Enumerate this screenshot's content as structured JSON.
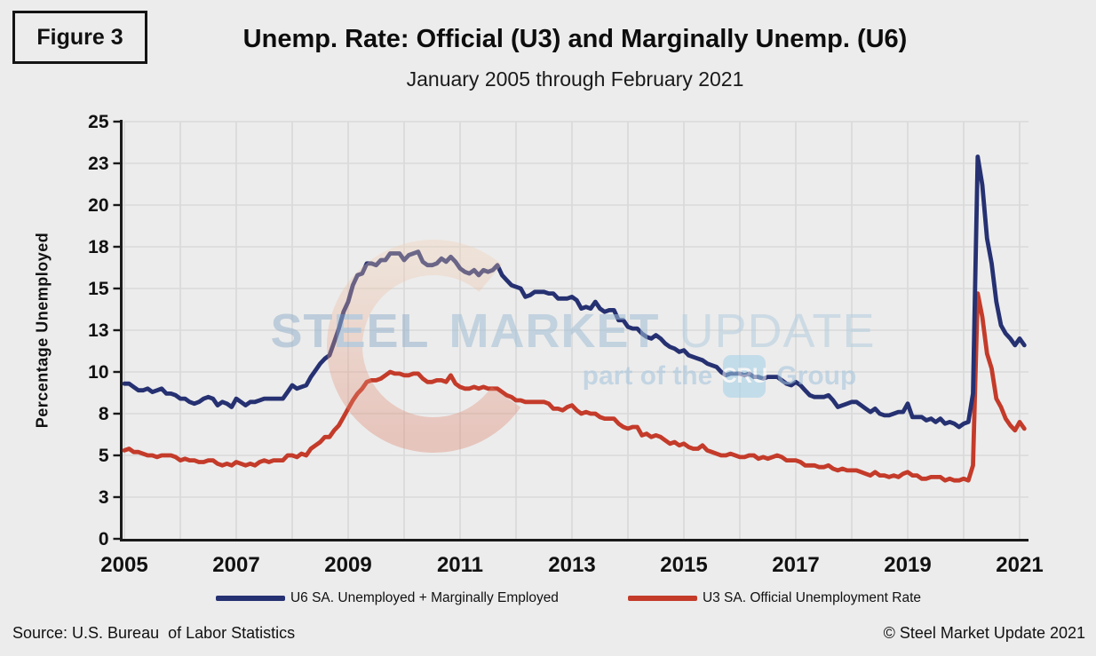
{
  "figure_label": "Figure 3",
  "title": "Unemp. Rate: Official (U3) and Marginally Unemp. (U6)",
  "subtitle": "January 2005 through February 2021",
  "watermark": {
    "word1": "STEEL",
    "word2": "MARKET",
    "word3": "UPDATE",
    "tagline_prefix": "part of the",
    "tagline_box": "CRU",
    "tagline_suffix": "Group"
  },
  "footer": {
    "source": "Source: U.S. Bureau  of Labor Statistics",
    "copyright": "© Steel Market Update 2021"
  },
  "colors": {
    "background": "#ececec",
    "gridline": "#d9d9d9",
    "axis": "#1a1a1a",
    "text": "#111111",
    "u6_line": "#263172",
    "u3_line": "#c43b2a",
    "watermark_blue": "#a7c4db",
    "cru_box": "#a3d0e8",
    "swoosh_top": "#f2d0b4",
    "swoosh_bottom": "#dc7a62"
  },
  "chart_data": {
    "type": "line",
    "title": "Unemp. Rate: Official (U3) and Marginally Unemp. (U6)",
    "subtitle": "January 2005 through February 2021",
    "xlabel": "",
    "ylabel": "Percentage Unemployed",
    "x_unit": "month",
    "x_start": "2005-01",
    "x_end": "2021-02",
    "ylim": [
      0,
      25
    ],
    "grid": true,
    "legend_position": "bottom",
    "y_ticks": [
      {
        "v": 0,
        "label": "0"
      },
      {
        "v": 2.5,
        "label": "3"
      },
      {
        "v": 5,
        "label": "5"
      },
      {
        "v": 7.5,
        "label": "8"
      },
      {
        "v": 10,
        "label": "10"
      },
      {
        "v": 12.5,
        "label": "13"
      },
      {
        "v": 15,
        "label": "15"
      },
      {
        "v": 17.5,
        "label": "18"
      },
      {
        "v": 20,
        "label": "20"
      },
      {
        "v": 22.5,
        "label": "23"
      },
      {
        "v": 25,
        "label": "25"
      }
    ],
    "x_ticks": [
      {
        "m": 0,
        "label": "2005"
      },
      {
        "m": 24,
        "label": "2007"
      },
      {
        "m": 48,
        "label": "2009"
      },
      {
        "m": 72,
        "label": "2011"
      },
      {
        "m": 96,
        "label": "2013"
      },
      {
        "m": 120,
        "label": "2015"
      },
      {
        "m": 144,
        "label": "2017"
      },
      {
        "m": 168,
        "label": "2019"
      },
      {
        "m": 192,
        "label": "2021"
      }
    ],
    "series": [
      {
        "name": "U6 SA. Unemployed + Marginally Employed",
        "color": "#263172",
        "values": [
          9.3,
          9.3,
          9.1,
          8.9,
          8.9,
          9.0,
          8.8,
          8.9,
          9.0,
          8.7,
          8.7,
          8.6,
          8.4,
          8.4,
          8.2,
          8.1,
          8.2,
          8.4,
          8.5,
          8.4,
          8.0,
          8.2,
          8.1,
          7.9,
          8.4,
          8.2,
          8.0,
          8.2,
          8.2,
          8.3,
          8.4,
          8.4,
          8.4,
          8.4,
          8.4,
          8.8,
          9.2,
          9.0,
          9.1,
          9.2,
          9.7,
          10.1,
          10.5,
          10.8,
          11.0,
          11.8,
          12.6,
          13.6,
          14.2,
          15.2,
          15.8,
          15.9,
          16.5,
          16.5,
          16.4,
          16.7,
          16.7,
          17.1,
          17.1,
          17.1,
          16.7,
          17.0,
          17.1,
          17.2,
          16.6,
          16.4,
          16.4,
          16.5,
          16.8,
          16.6,
          16.9,
          16.6,
          16.2,
          16.0,
          15.9,
          16.1,
          15.8,
          16.1,
          16.0,
          16.1,
          16.4,
          15.8,
          15.5,
          15.2,
          15.1,
          15.0,
          14.5,
          14.6,
          14.8,
          14.8,
          14.8,
          14.7,
          14.7,
          14.4,
          14.4,
          14.4,
          14.5,
          14.3,
          13.8,
          13.9,
          13.8,
          14.2,
          13.8,
          13.6,
          13.7,
          13.7,
          13.1,
          13.1,
          12.7,
          12.6,
          12.6,
          12.3,
          12.1,
          12.0,
          12.2,
          12.0,
          11.7,
          11.5,
          11.4,
          11.2,
          11.3,
          11.0,
          10.9,
          10.8,
          10.7,
          10.5,
          10.4,
          10.3,
          10.0,
          9.8,
          9.9,
          9.9,
          9.9,
          9.8,
          9.9,
          9.7,
          9.7,
          9.6,
          9.7,
          9.7,
          9.7,
          9.5,
          9.3,
          9.2,
          9.4,
          9.2,
          8.9,
          8.6,
          8.5,
          8.5,
          8.5,
          8.6,
          8.3,
          7.9,
          8.0,
          8.1,
          8.2,
          8.2,
          8.0,
          7.8,
          7.6,
          7.8,
          7.5,
          7.4,
          7.4,
          7.5,
          7.6,
          7.6,
          8.1,
          7.3,
          7.3,
          7.3,
          7.1,
          7.2,
          7.0,
          7.2,
          6.9,
          7.0,
          6.9,
          6.7,
          6.9,
          7.0,
          8.7,
          22.9,
          21.2,
          18.0,
          16.5,
          14.2,
          12.8,
          12.3,
          12.0,
          11.6,
          12.0,
          11.6
        ]
      },
      {
        "name": "U3 SA. Official Unemployment Rate",
        "color": "#c43b2a",
        "values": [
          5.3,
          5.4,
          5.2,
          5.2,
          5.1,
          5.0,
          5.0,
          4.9,
          5.0,
          5.0,
          5.0,
          4.9,
          4.7,
          4.8,
          4.7,
          4.7,
          4.6,
          4.6,
          4.7,
          4.7,
          4.5,
          4.4,
          4.5,
          4.4,
          4.6,
          4.5,
          4.4,
          4.5,
          4.4,
          4.6,
          4.7,
          4.6,
          4.7,
          4.7,
          4.7,
          5.0,
          5.0,
          4.9,
          5.1,
          5.0,
          5.4,
          5.6,
          5.8,
          6.1,
          6.1,
          6.5,
          6.8,
          7.3,
          7.8,
          8.3,
          8.7,
          9.0,
          9.4,
          9.5,
          9.5,
          9.6,
          9.8,
          10.0,
          9.9,
          9.9,
          9.8,
          9.8,
          9.9,
          9.9,
          9.6,
          9.4,
          9.4,
          9.5,
          9.5,
          9.4,
          9.8,
          9.3,
          9.1,
          9.0,
          9.0,
          9.1,
          9.0,
          9.1,
          9.0,
          9.0,
          9.0,
          8.8,
          8.6,
          8.5,
          8.3,
          8.3,
          8.2,
          8.2,
          8.2,
          8.2,
          8.2,
          8.1,
          7.8,
          7.8,
          7.7,
          7.9,
          8.0,
          7.7,
          7.5,
          7.6,
          7.5,
          7.5,
          7.3,
          7.2,
          7.2,
          7.2,
          6.9,
          6.7,
          6.6,
          6.7,
          6.7,
          6.2,
          6.3,
          6.1,
          6.2,
          6.1,
          5.9,
          5.7,
          5.8,
          5.6,
          5.7,
          5.5,
          5.4,
          5.4,
          5.6,
          5.3,
          5.2,
          5.1,
          5.0,
          5.0,
          5.1,
          5.0,
          4.9,
          4.9,
          5.0,
          5.0,
          4.8,
          4.9,
          4.8,
          4.9,
          5.0,
          4.9,
          4.7,
          4.7,
          4.7,
          4.6,
          4.4,
          4.4,
          4.4,
          4.3,
          4.3,
          4.4,
          4.2,
          4.1,
          4.2,
          4.1,
          4.1,
          4.1,
          4.0,
          3.9,
          3.8,
          4.0,
          3.8,
          3.8,
          3.7,
          3.8,
          3.7,
          3.9,
          4.0,
          3.8,
          3.8,
          3.6,
          3.6,
          3.7,
          3.7,
          3.7,
          3.5,
          3.6,
          3.5,
          3.5,
          3.6,
          3.5,
          4.4,
          14.7,
          13.3,
          11.1,
          10.2,
          8.4,
          7.9,
          7.2,
          6.8,
          6.5,
          7.0,
          6.6
        ]
      }
    ]
  }
}
